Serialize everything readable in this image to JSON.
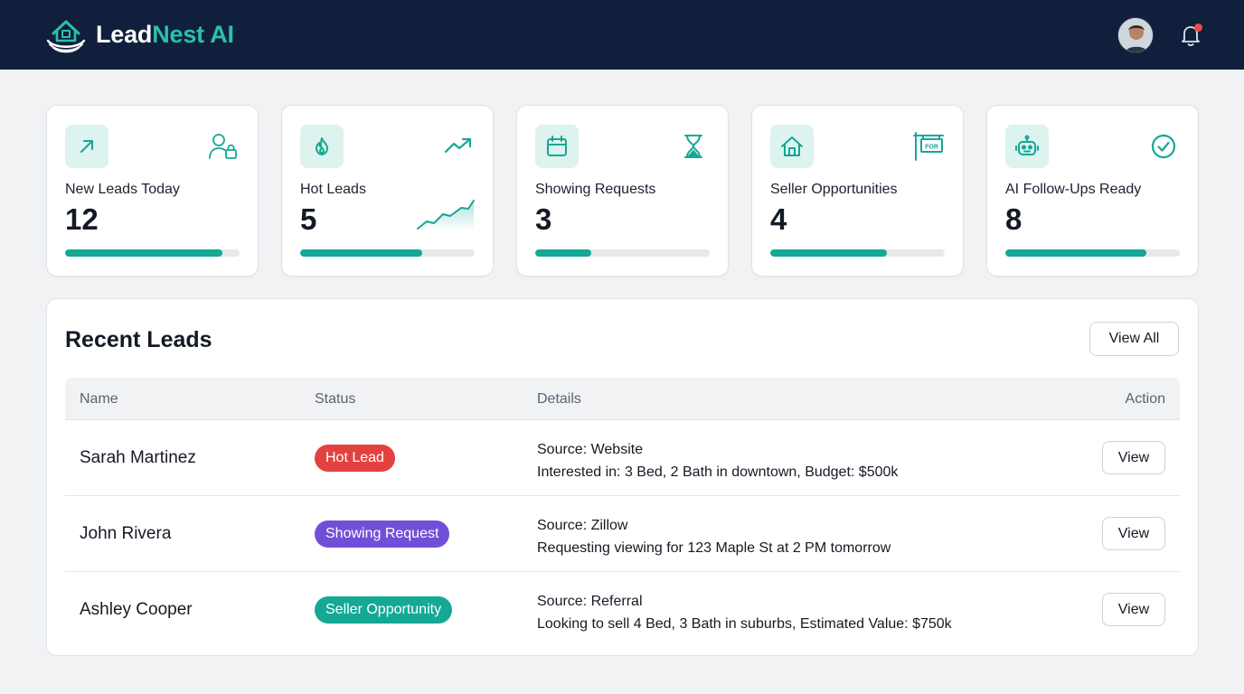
{
  "header": {
    "brand_part1": "Lead",
    "brand_part2": "Nest AI",
    "logo_icon": "house-nest-icon",
    "avatar_icon": "user-avatar",
    "notification_icon": "bell-icon",
    "has_notification": true
  },
  "colors": {
    "header_bg": "#10203c",
    "accent": "#14a895",
    "brand_accent": "#2bc0ad",
    "icon_bg": "#ddf3ef",
    "hot": "#e2413f",
    "showing": "#7150d8",
    "seller": "#14a895",
    "notification_dot": "#ef4a4a"
  },
  "stats": [
    {
      "label": "New Leads Today",
      "value": "12",
      "progress": 0.9,
      "icon": "arrow-up-right-icon",
      "corner_icon": "user-lock-icon"
    },
    {
      "label": "Hot Leads",
      "value": "5",
      "progress": 0.7,
      "icon": "flame-icon",
      "corner_icon": "trending-up-icon",
      "sparkline": "trend-sparkline"
    },
    {
      "label": "Showing Requests",
      "value": "3",
      "progress": 0.32,
      "icon": "calendar-icon",
      "corner_icon": "hourglass-icon"
    },
    {
      "label": "Seller Opportunities",
      "value": "4",
      "progress": 0.67,
      "icon": "house-icon",
      "corner_icon": "for-sale-sign-icon",
      "corner_text": "FOR"
    },
    {
      "label": "AI Follow-Ups Ready",
      "value": "8",
      "progress": 0.81,
      "icon": "robot-icon",
      "corner_icon": "check-circle-icon"
    }
  ],
  "recent_leads": {
    "title": "Recent Leads",
    "view_all_label": "View All",
    "columns": [
      "Name",
      "Status",
      "Details",
      "Action"
    ],
    "rows": [
      {
        "name": "Sarah Martinez",
        "status": "Hot Lead",
        "status_color": "#e2413f",
        "detail_line1": "Source: Website",
        "detail_line2": "Interested in: 3 Bed, 2 Bath in downtown, Budget: $500k",
        "action": "View"
      },
      {
        "name": "John Rivera",
        "status": "Showing Request",
        "status_color": "#7150d8",
        "detail_line1": "Source: Zillow",
        "detail_line2": "Requesting viewing for 123 Maple St at 2 PM tomorrow",
        "action": "View"
      },
      {
        "name": "Ashley Cooper",
        "status": "Seller Opportunity",
        "status_color": "#14a895",
        "detail_line1": "Source: Referral",
        "detail_line2": "Looking to sell 4 Bed, 3 Bath in suburbs, Estimated Value: $750k",
        "action": "View"
      }
    ]
  }
}
